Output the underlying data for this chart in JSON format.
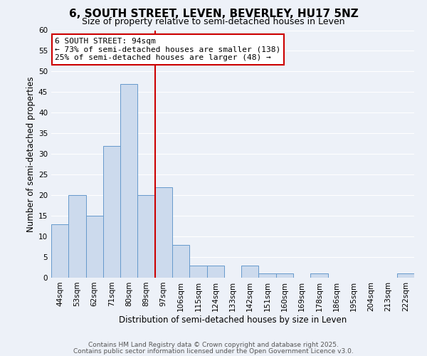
{
  "title": "6, SOUTH STREET, LEVEN, BEVERLEY, HU17 5NZ",
  "subtitle": "Size of property relative to semi-detached houses in Leven",
  "xlabel": "Distribution of semi-detached houses by size in Leven",
  "ylabel": "Number of semi-detached properties",
  "bin_labels": [
    "44sqm",
    "53sqm",
    "62sqm",
    "71sqm",
    "80sqm",
    "89sqm",
    "97sqm",
    "106sqm",
    "115sqm",
    "124sqm",
    "133sqm",
    "142sqm",
    "151sqm",
    "160sqm",
    "169sqm",
    "178sqm",
    "186sqm",
    "195sqm",
    "204sqm",
    "213sqm",
    "222sqm"
  ],
  "bin_values": [
    13,
    20,
    15,
    32,
    47,
    20,
    22,
    8,
    3,
    3,
    0,
    3,
    1,
    1,
    0,
    1,
    0,
    0,
    0,
    0,
    1
  ],
  "bar_color": "#ccdaed",
  "bar_edge_color": "#6699cc",
  "highlight_line_color": "#cc0000",
  "highlight_line_bin": 5,
  "annotation_text_line1": "6 SOUTH STREET: 94sqm",
  "annotation_text_line2": "← 73% of semi-detached houses are smaller (138)",
  "annotation_text_line3": "25% of semi-detached houses are larger (48) →",
  "annotation_box_edge_color": "#cc0000",
  "ylim": [
    0,
    60
  ],
  "yticks": [
    0,
    5,
    10,
    15,
    20,
    25,
    30,
    35,
    40,
    45,
    50,
    55,
    60
  ],
  "background_color": "#edf1f8",
  "grid_color": "#ffffff",
  "footer_line1": "Contains HM Land Registry data © Crown copyright and database right 2025.",
  "footer_line2": "Contains public sector information licensed under the Open Government Licence v3.0.",
  "title_fontsize": 11,
  "subtitle_fontsize": 9,
  "axis_label_fontsize": 8.5,
  "tick_fontsize": 7.5,
  "annotation_fontsize": 8,
  "footer_fontsize": 6.5
}
